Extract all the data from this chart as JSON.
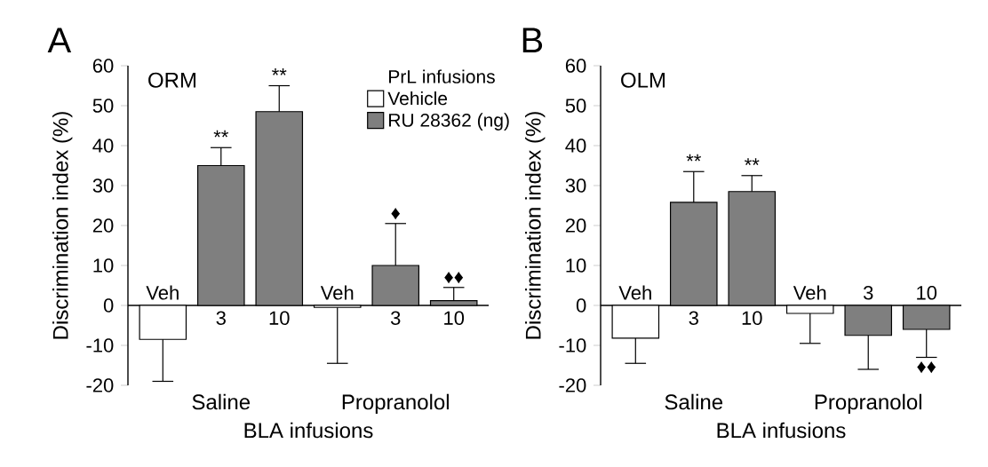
{
  "chart_data": [
    {
      "type": "bar",
      "title": "A",
      "subtitle": "ORM",
      "xlabel": "BLA infusions",
      "ylabel": "Discrimination index (%)",
      "categories": [
        "Veh",
        "3",
        "10",
        "Veh",
        "3",
        "10"
      ],
      "series": [
        {
          "name": "Vehicle",
          "color": "#ffffff",
          "values": [
            -8.5,
            null,
            null,
            -0.5,
            null,
            null
          ],
          "errors": [
            [
              -19,
              -8.5
            ],
            null,
            null,
            [
              -14.5,
              -0.5
            ],
            null,
            null
          ]
        },
        {
          "name": "RU 28362 (ng)",
          "color": "#7f7f7f",
          "values": [
            null,
            35,
            48.5,
            null,
            10,
            1.2
          ],
          "errors": [
            null,
            [
              35,
              39.5
            ],
            [
              48.5,
              55
            ],
            null,
            [
              10,
              20.5
            ],
            [
              1.2,
              4.5
            ]
          ]
        }
      ],
      "ylim": [
        -20,
        60
      ],
      "yticks": [
        -20,
        -10,
        0,
        10,
        20,
        30,
        40,
        50,
        60
      ],
      "legend": "top right",
      "legend_title": "PrL infusions",
      "annotations": [
        "Saline",
        "Propranolol",
        "**",
        "**",
        "♦",
        "♦♦"
      ]
    },
    {
      "type": "bar",
      "title": "B",
      "subtitle": "OLM",
      "xlabel": "BLA infusions",
      "ylabel": "Discrimination index (%)",
      "categories": [
        "Veh",
        "3",
        "10",
        "Veh",
        "3",
        "10"
      ],
      "series": [
        {
          "color": "#ffffff",
          "values": [
            -8.2,
            null,
            null,
            -2,
            null,
            null
          ],
          "errors": [
            [
              -14.5,
              -8.2
            ],
            null,
            null,
            [
              -9.5,
              -2
            ],
            null,
            null
          ]
        },
        {
          "color": "#7f7f7f",
          "values": [
            null,
            25.8,
            28.5,
            null,
            -7.5,
            -6
          ],
          "errors": [
            null,
            [
              25.8,
              33.5
            ],
            [
              28.5,
              32.5
            ],
            null,
            [
              -16,
              -7.5
            ],
            [
              -13,
              -6
            ]
          ]
        }
      ],
      "ylim": [
        -20,
        60
      ],
      "yticks": [
        -20,
        -10,
        0,
        10,
        20,
        30,
        40,
        50,
        60
      ],
      "annotations": [
        "Saline",
        "Propranolol",
        "**",
        "**",
        "♦♦"
      ]
    }
  ]
}
